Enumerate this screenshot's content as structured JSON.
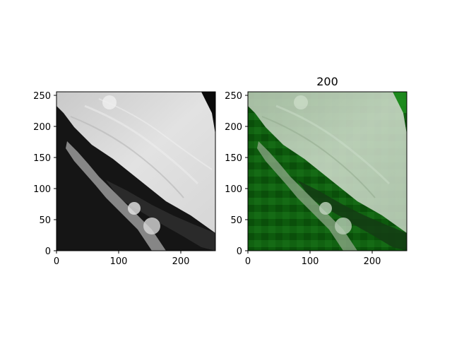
{
  "figure": {
    "panels": [
      {
        "name": "left",
        "title": "",
        "xticks": [
          "0",
          "100",
          "200"
        ],
        "yticks": [
          "0",
          "50",
          "100",
          "150",
          "200",
          "250"
        ],
        "xlim": [
          0,
          256
        ],
        "ylim": [
          0,
          256
        ],
        "colormap": "gray"
      },
      {
        "name": "right",
        "title": "200",
        "xticks": [
          "0",
          "100",
          "200"
        ],
        "yticks": [
          "0",
          "50",
          "100",
          "150",
          "200",
          "250"
        ],
        "xlim": [
          0,
          256
        ],
        "ylim": [
          0,
          256
        ],
        "colormap": "gray with blocky green overlay"
      }
    ],
    "colors": {
      "cloud": "#d8d8d8",
      "dark_ground": "#141414",
      "overlay_green": "#1f7a1f"
    }
  }
}
